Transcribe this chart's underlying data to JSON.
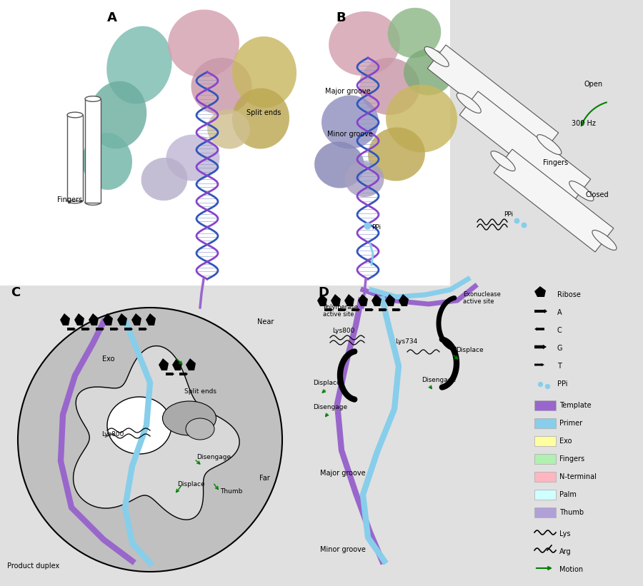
{
  "bg_color": "#e0e0e0",
  "white": "#ffffff",
  "template_color": "#9966CC",
  "primer_color": "#87CEEB",
  "motion_color": "#228B22",
  "dna_col1": "#3355BB",
  "dna_col2": "#8844CC",
  "gray_circle": "#C0C0C0",
  "inner_gray": "#B0B0B0",
  "panel_A_label": "A",
  "panel_B_label": "B",
  "panel_C_label": "C",
  "panel_D_label": "D",
  "legend_symbol_labels": [
    "Ribose",
    "A",
    "C",
    "G",
    "T",
    "PPi"
  ],
  "legend_color_labels": [
    "Template",
    "Primer",
    "Exo",
    "Fingers",
    "N-terminal",
    "Palm",
    "Thumb"
  ],
  "legend_colors": [
    "#9966CC",
    "#87CEEB",
    "#FFFFA0",
    "#B0F0B0",
    "#FFB6C1",
    "#CFFFFF",
    "#B0A0D8"
  ],
  "legend_wave_labels": [
    "Lys",
    "Arg",
    "Motion"
  ]
}
